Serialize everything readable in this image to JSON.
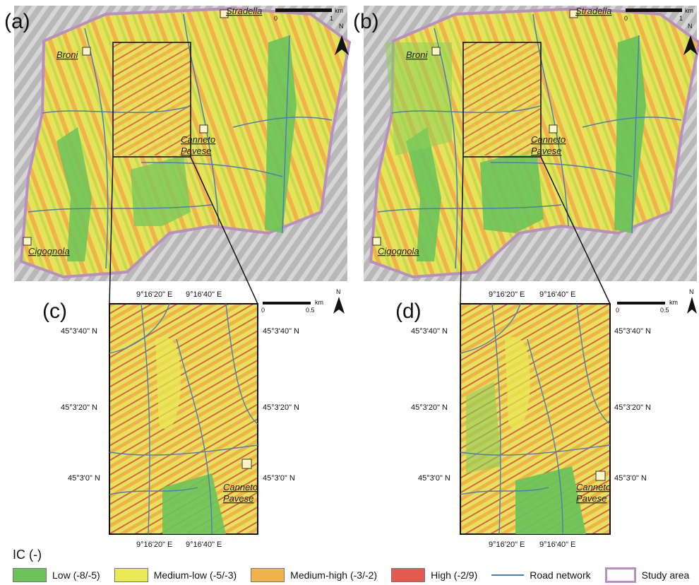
{
  "panels": {
    "a": "(a)",
    "b": "(b)",
    "c": "(c)",
    "d": "(d)"
  },
  "towns": {
    "stradella": "Stradella",
    "broni": "Broni",
    "canneto": "Canneto",
    "pavese": "Pavese",
    "cigognola": "Cigognola"
  },
  "scale_top": {
    "unit": "km",
    "zero": "0",
    "max": "1"
  },
  "scale_zoom": {
    "unit": "km",
    "zero": "0",
    "max": "0.5"
  },
  "north": "N",
  "coords": {
    "lon1": "9°16'20\" E",
    "lon2": "9°16'40\" E",
    "lat1": "45°3'40\" N",
    "lat2": "45°3'20\" N",
    "lat3": "45°3'0\" N"
  },
  "legend": {
    "title": "IC (-)",
    "items": [
      {
        "label": "Low (-8/-5)",
        "color": "#6cc35a"
      },
      {
        "label": "Medium-low (-5/-3)",
        "color": "#eaea55"
      },
      {
        "label": "Medium-high (-3/-2)",
        "color": "#f0b24a"
      },
      {
        "label": "High (-2/9)",
        "color": "#e35b4f"
      }
    ],
    "road": "Road network",
    "study": "Study area"
  }
}
